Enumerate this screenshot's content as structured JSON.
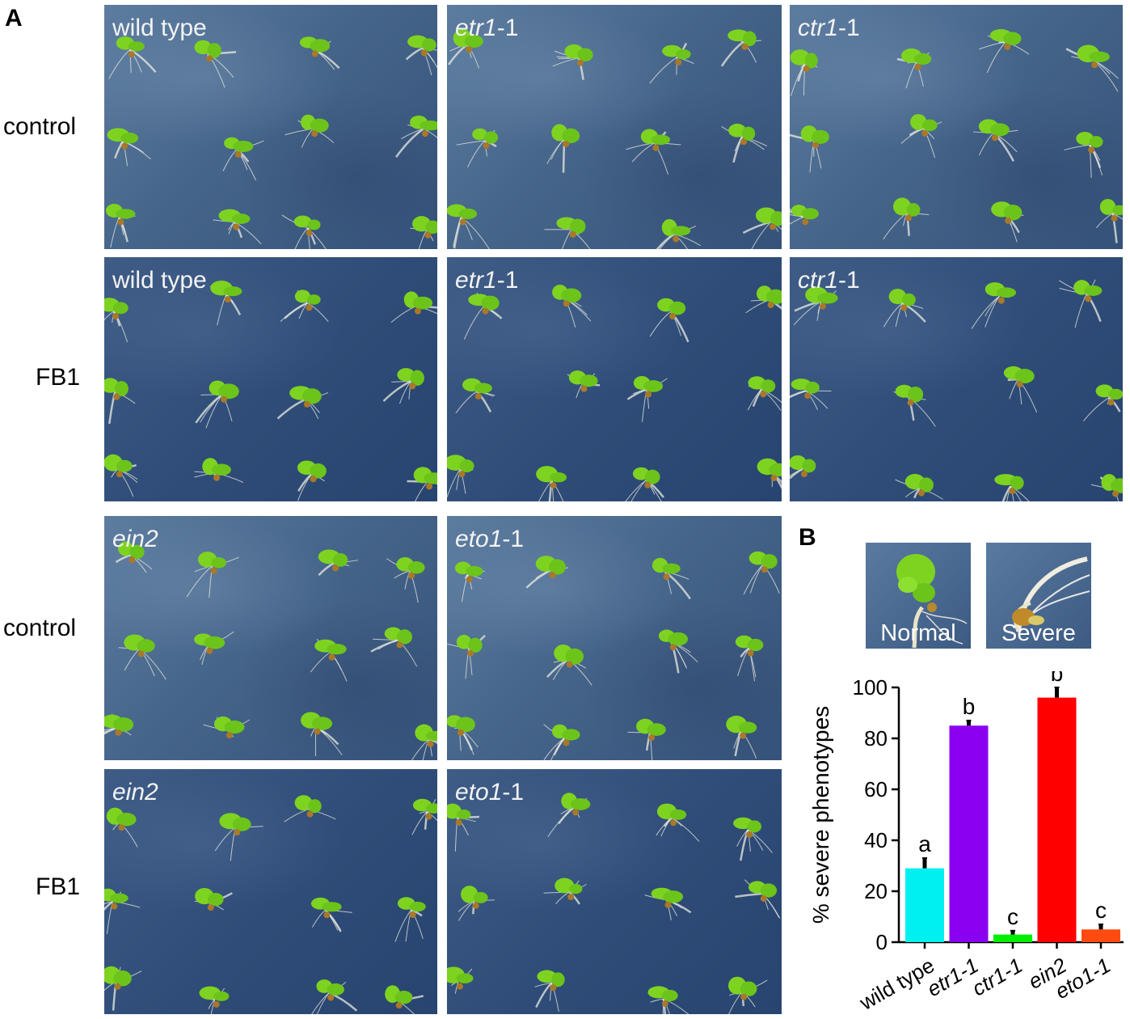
{
  "panel_a_letter": "A",
  "panel_b_letter": "B",
  "row_labels": [
    "control",
    "FB1",
    "control",
    "FB1"
  ],
  "photos": [
    {
      "genotype": "wild type",
      "gene": "wild type",
      "allele": ""
    },
    {
      "genotype": "etr1-1",
      "gene": "etr1",
      "allele": "-1"
    },
    {
      "genotype": "ctr1-1",
      "gene": "ctr1",
      "allele": "-1"
    },
    {
      "genotype": "wild type",
      "gene": "wild type",
      "allele": ""
    },
    {
      "genotype": "etr1-1",
      "gene": "etr1",
      "allele": "-1"
    },
    {
      "genotype": "ctr1-1",
      "gene": "ctr1",
      "allele": "-1"
    },
    {
      "genotype": "ein2",
      "gene": "ein2",
      "allele": ""
    },
    {
      "genotype": "eto1-1",
      "gene": "eto1",
      "allele": "-1"
    },
    {
      "genotype": "ein2",
      "gene": "ein2",
      "allele": ""
    },
    {
      "genotype": "eto1-1",
      "gene": "eto1",
      "allele": "-1"
    }
  ],
  "insets": {
    "normal": "Normal",
    "severe": "Severe"
  },
  "colors": {
    "cyan": "#00f0f0",
    "purple": "#8a00f0",
    "green": "#00ee00",
    "red": "#ff0000",
    "orange": "#ff4a10",
    "photo_bg": "#46658a",
    "seedling": "#7ed321"
  },
  "chart_data": {
    "type": "bar",
    "ylabel": "% severe phenotypes",
    "xlabel": "",
    "ylim": [
      0,
      100
    ],
    "yticks": [
      0,
      20,
      40,
      60,
      80,
      100
    ],
    "categories": [
      "wild type",
      "etr1-1",
      "ctr1-1",
      "ein2",
      "eto1-1"
    ],
    "values": [
      29,
      85,
      3,
      96,
      5
    ],
    "errors": [
      4,
      2,
      1.5,
      4,
      2
    ],
    "significance": [
      "a",
      "b",
      "c",
      "b",
      "c"
    ],
    "bar_colors": [
      "#00f0f0",
      "#8a00f0",
      "#00ee00",
      "#ff0000",
      "#ff4a10"
    ],
    "grid": false,
    "legend": "none"
  }
}
